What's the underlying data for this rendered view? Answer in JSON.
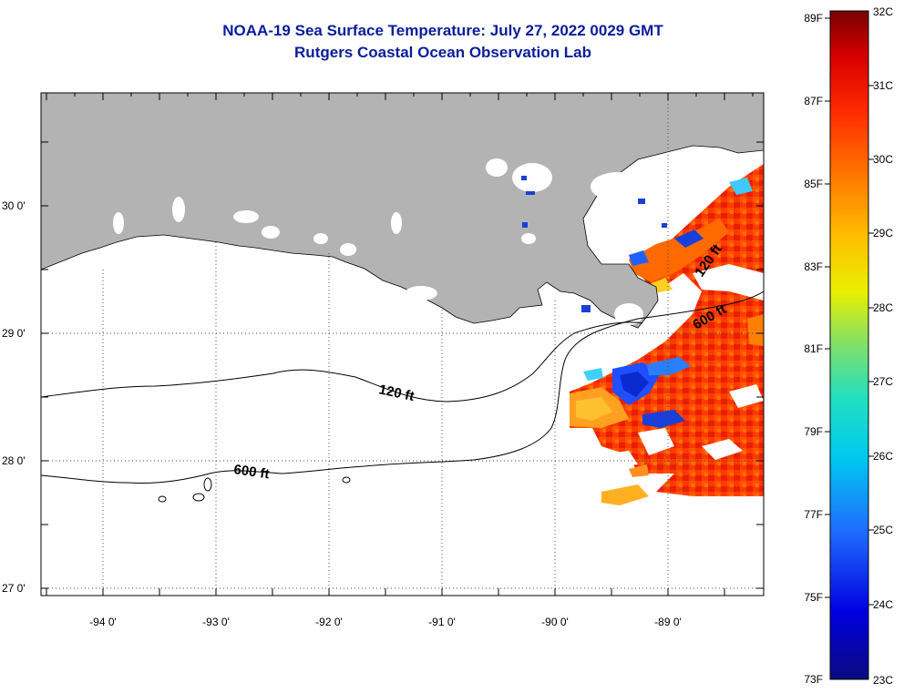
{
  "title": {
    "line1": "NOAA-19 Sea Surface Temperature:  July 27, 2022 0029 GMT",
    "line2": "Rutgers Coastal Ocean Observation Lab"
  },
  "map": {
    "lon_labels": [
      "-94 0'",
      "-93 0'",
      "-92 0'",
      "-91 0'",
      "-90 0'",
      "-89 0'"
    ],
    "lat_labels": [
      "30 0'",
      "29 0'",
      "28 0'",
      "27 0'"
    ],
    "contour_labels": [
      {
        "text": "120 ft",
        "id": "c120a"
      },
      {
        "text": "600 ft",
        "id": "c600a"
      },
      {
        "text": "120 ft",
        "id": "c120b"
      },
      {
        "text": "600 ft",
        "id": "c600b"
      }
    ],
    "colors": {
      "land": "#b3b3b3",
      "water_no_data": "#ffffff",
      "frame": "#000000"
    }
  },
  "colorbar": {
    "celsius_labels": [
      "32C",
      "31C",
      "30C",
      "29C",
      "28C",
      "27C",
      "26C",
      "25C",
      "24C",
      "23C"
    ],
    "fahrenheit_labels": [
      "89F",
      "87F",
      "85F",
      "83F",
      "81F",
      "79F",
      "77F",
      "75F",
      "73F"
    ],
    "range_c": [
      23,
      32
    ],
    "range_f": [
      73,
      89
    ]
  }
}
